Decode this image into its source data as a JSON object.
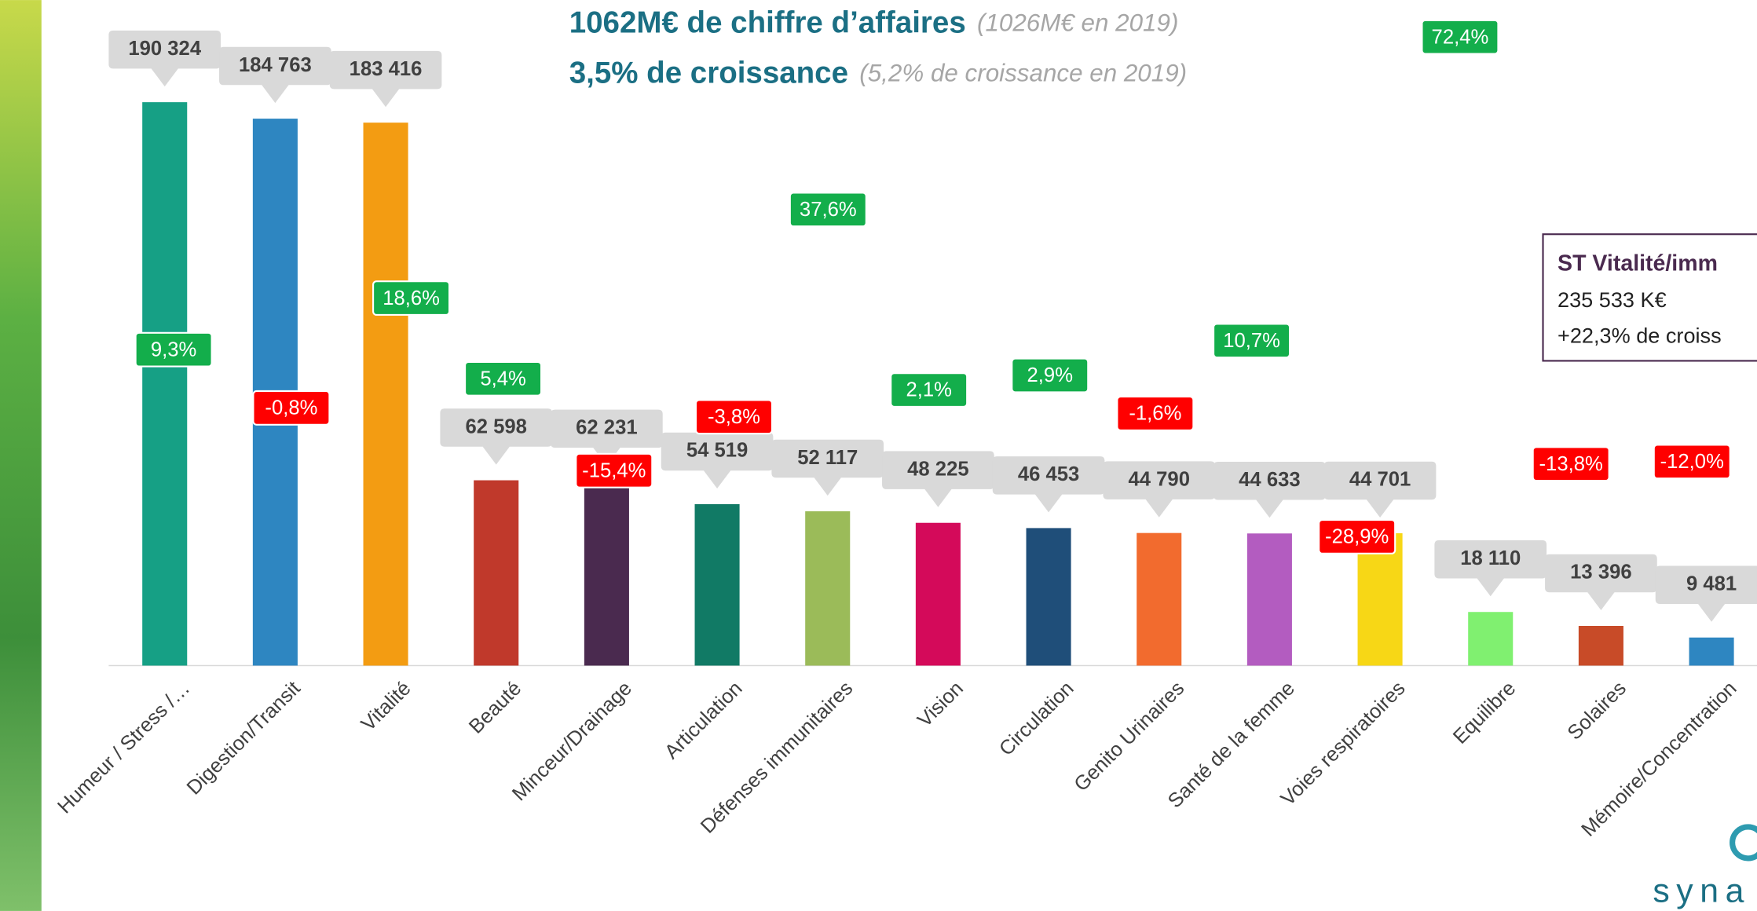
{
  "chart_data": {
    "type": "bar",
    "title": {
      "main": "1062M€ de chiffre d’affaires",
      "note": "(1026M€ en 2019)"
    },
    "subtitle": {
      "main": "3,5% de croissance",
      "note": "(5,2% de croissance en 2019)"
    },
    "categories": [
      "Humeur / Stress /…",
      "Digestion/Transit",
      "Vitalité",
      "Beauté",
      "Minceur/Drainage",
      "Articulation",
      "Défenses immunitaires",
      "Vision",
      "Circulation",
      "Genito Urinaires",
      "Santé de la femme",
      "Voies respiratoires",
      "Equilibre",
      "Solaires",
      "Mémoire/Concentration"
    ],
    "values": [
      190324,
      184763,
      183416,
      62598,
      62231,
      54519,
      52117,
      48225,
      46453,
      44790,
      44633,
      44701,
      18110,
      13396,
      9481
    ],
    "value_labels": [
      "190 324",
      "184 763",
      "183 416",
      "62 598",
      "62 231",
      "54 519",
      "52 117",
      "48 225",
      "46 453",
      "44 790",
      "44 633",
      "44 701",
      "18 110",
      "13 396",
      "9 481"
    ],
    "colors": [
      "#16a085",
      "#2e86c1",
      "#f39c12",
      "#c0392b",
      "#4a2a4f",
      "#117a65",
      "#9bbb59",
      "#d40a5a",
      "#1f4e79",
      "#f26b2e",
      "#b35cc0",
      "#f7d716",
      "#80f070",
      "#c84b28",
      "#2e86c1"
    ],
    "growth": {
      "values": [
        9.3,
        -0.8,
        18.6,
        5.4,
        -15.4,
        -3.8,
        37.6,
        2.1,
        2.9,
        -1.6,
        10.7,
        -28.9,
        72.4,
        -13.8,
        -12.0
      ],
      "labels": [
        "9,3%",
        "-0,8%",
        "18,6%",
        "5,4%",
        "-15,4%",
        "-3,8%",
        "37,6%",
        "2,1%",
        "2,9%",
        "-1,6%",
        "10,7%",
        "-28,9%",
        "72,4%",
        "-13,8%",
        "-12,0%"
      ],
      "positive_color": "#13ae4b",
      "negative_color": "#ff0000"
    },
    "ylim": [
      0,
      200000
    ],
    "callout": {
      "title": "ST Vitalité/imm",
      "line1": "235 533 K€",
      "line2": "+22,3% de croiss"
    },
    "logo": "syna"
  }
}
